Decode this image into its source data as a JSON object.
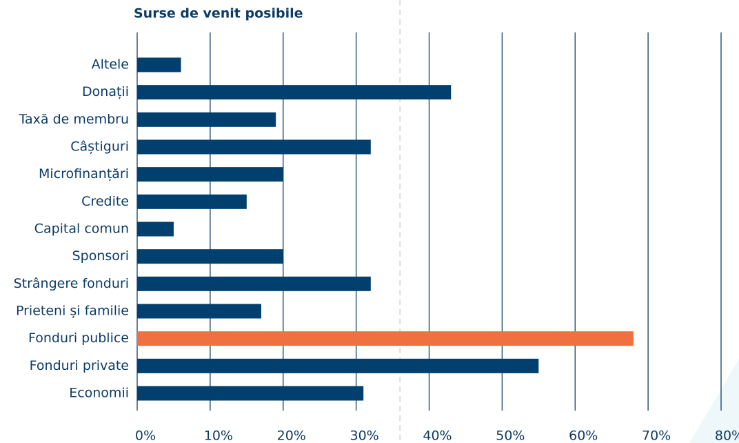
{
  "chart_data": {
    "type": "hbar",
    "title": "Surse de venit posibile",
    "categories": [
      "Altele",
      "Donații",
      "Taxă de membru",
      "Câștiguri",
      "Microfinanțări",
      "Credite",
      "Capital comun",
      "Sponsori",
      "Strângere fonduri",
      "Prieteni și familie",
      "Fonduri publice",
      "Fonduri private",
      "Economii"
    ],
    "values": [
      6,
      43,
      19,
      32,
      20,
      15,
      5,
      20,
      32,
      17,
      68,
      55,
      31
    ],
    "colors": [
      "#003f6e",
      "#003f6e",
      "#003f6e",
      "#003f6e",
      "#003f6e",
      "#003f6e",
      "#003f6e",
      "#003f6e",
      "#003f6e",
      "#003f6e",
      "#f07040",
      "#003f6e",
      "#003f6e"
    ],
    "xlim": [
      0,
      80
    ],
    "xticks": [
      {
        "value": 0,
        "label": "0%"
      },
      {
        "value": 10,
        "label": "10%"
      },
      {
        "value": 20,
        "label": "20%"
      },
      {
        "value": 30,
        "label": "30%"
      },
      {
        "value": 40,
        "label": "40%"
      },
      {
        "value": 50,
        "label": "50%"
      },
      {
        "value": 60,
        "label": "60%"
      },
      {
        "value": 70,
        "label": "70%"
      },
      {
        "value": 80,
        "label": "80%"
      }
    ],
    "reference_line": 36,
    "grid": true
  }
}
